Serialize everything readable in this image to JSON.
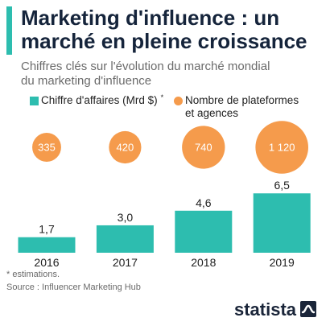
{
  "chart_data": {
    "type": "bar",
    "title": "Marketing d'influence : un marché en pleine croissance",
    "subtitle": "Chiffres clés sur l'évolution du marché mondial du marketing d'influence",
    "categories": [
      "2016",
      "2017",
      "2018",
      "2019"
    ],
    "series": [
      {
        "name": "Chiffre d'affaires (Mrd $)",
        "note_mark": "*",
        "type": "bar",
        "values": [
          1.7,
          3.0,
          4.6,
          6.5
        ],
        "labels": [
          "1,7",
          "3,0",
          "4,6",
          "6,5"
        ],
        "color": "#2dbdaf"
      },
      {
        "name": "Nombre de plateformes et agences",
        "type": "bubble",
        "values": [
          335,
          420,
          740,
          1120
        ],
        "labels": [
          "335",
          "420",
          "740",
          "1 120"
        ],
        "color": "#f59b4c"
      }
    ],
    "grid": false,
    "y_axis_shown": false,
    "legend_position": "top",
    "notes": [
      "* estimations."
    ],
    "source": "Source : Influencer Marketing Hub"
  },
  "brand": {
    "name": "statista",
    "icon": "statista-wave-icon"
  },
  "colors": {
    "title": "#15243b",
    "subtitle": "#6b6b6b",
    "accent": "#2dbdaf",
    "label": "#1f1f1f",
    "footer": "#6b6b6b",
    "logo": "#1a2539"
  }
}
